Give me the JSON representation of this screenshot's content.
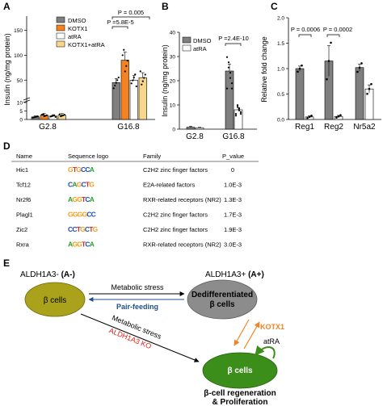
{
  "panel_labels": {
    "a": "A",
    "b": "B",
    "c": "C",
    "d": "D",
    "e": "E"
  },
  "colors": {
    "dmso": "#7f7f7f",
    "kotx1": "#f5821f",
    "atra": "#ffffff",
    "kotx1_atra": "#f9d68a",
    "beta_cell": "#a9a21a",
    "dediff": "#8c8c8c",
    "regen": "#3c8e1b",
    "kotx1_label": "#f5821f",
    "pair_feeding": "#1f4e8c",
    "ko_label": "#e0201b"
  },
  "chart_data": [
    {
      "type": "bar",
      "panel": "A",
      "ylabel": "Insulin (ng/mg protein)",
      "ylim": [
        0,
        175
      ],
      "yticks": [
        "0",
        "5",
        "10",
        "50",
        "100",
        "150"
      ],
      "categories": [
        "G2.8",
        "G16.8"
      ],
      "legend": [
        "DMSO",
        "KOTX1",
        "atRA",
        "KOTX1+atRA"
      ],
      "series": [
        {
          "name": "DMSO",
          "values": [
            1.5,
            45
          ]
        },
        {
          "name": "KOTX1",
          "values": [
            2.5,
            90
          ]
        },
        {
          "name": "atRA",
          "values": [
            2,
            50
          ]
        },
        {
          "name": "KOTX1+atRA",
          "values": [
            2.5,
            55
          ]
        }
      ],
      "annotations": [
        "P =5.8E-5",
        "P = 0.005"
      ]
    },
    {
      "type": "bar",
      "panel": "B",
      "ylabel": "Insulin (ng/mg protein)",
      "ylim": [
        0,
        40
      ],
      "yticks": [
        "0",
        "10",
        "20",
        "30",
        "40"
      ],
      "categories": [
        "G2.8",
        "G16.8"
      ],
      "legend": [
        "DMSO",
        "atRA"
      ],
      "series": [
        {
          "name": "DMSO",
          "values": [
            0.8,
            24
          ]
        },
        {
          "name": "atRA",
          "values": [
            0.5,
            8
          ]
        }
      ],
      "annotations": [
        "P =2.4E-10"
      ]
    },
    {
      "type": "bar",
      "panel": "C",
      "ylabel": "Relative fold change",
      "ylim": [
        0,
        2.0
      ],
      "yticks": [
        "0.0",
        "0.5",
        "1.0",
        "1.5",
        "2.0"
      ],
      "categories": [
        "Reg1",
        "Reg2",
        "Nr5a2"
      ],
      "series": [
        {
          "name": "",
          "values": [
            1.0,
            1.15,
            1.02
          ]
        },
        {
          "name": "",
          "values": [
            0.05,
            0.06,
            0.6
          ]
        }
      ],
      "annotations": [
        "P = 0.0006",
        "P = 0.0002"
      ]
    }
  ],
  "motif_table": {
    "headers": [
      "Name",
      "Sequence logo",
      "Family",
      "P_value"
    ],
    "rows": [
      {
        "name": "Hic1",
        "logo": "GTGCCA",
        "family": "C2H2 zinc finger factors",
        "p": "0"
      },
      {
        "name": "Tcf12",
        "logo": "CAGCTG",
        "family": "E2A-related factors",
        "p": "1.0E-3"
      },
      {
        "name": "Nr2f6",
        "logo": "AGGTCA",
        "family": "RXR-related receptors (NR2)",
        "p": "1.3E-3"
      },
      {
        "name": "Plagl1",
        "logo": "GGGGCC",
        "family": "C2H2 zinc finger factors",
        "p": "1.7E-3"
      },
      {
        "name": "Zic2",
        "logo": "CCTGCTG",
        "family": "C2H2 zinc finger factors",
        "p": "1.9E-3"
      },
      {
        "name": "Rxra",
        "logo": "AGGTCA",
        "family": "RXR-related receptors (NR2)",
        "p": "3.0E-3"
      }
    ]
  },
  "diagram": {
    "left_title": "ALDH1A3- ",
    "left_title_bold": "(A-)",
    "right_title": "ALDH1A3+ ",
    "right_title_bold": "(A+)",
    "beta_cells": "β cells",
    "dediff_line1": "Dedifferentiated",
    "dediff_line2": "β cells",
    "metabolic_stress_top": "Metabolic stress",
    "pair_feeding": "Pair-feeding",
    "metabolic_stress_diag": "Metabolic stress",
    "aldh_ko": "ALDH1A3 KO",
    "kotx1": "KOTX1",
    "atra": "atRA",
    "regen_cells": "β cells",
    "regen_line1": "β-cell regeneration",
    "regen_line2": "& Proliferation"
  }
}
